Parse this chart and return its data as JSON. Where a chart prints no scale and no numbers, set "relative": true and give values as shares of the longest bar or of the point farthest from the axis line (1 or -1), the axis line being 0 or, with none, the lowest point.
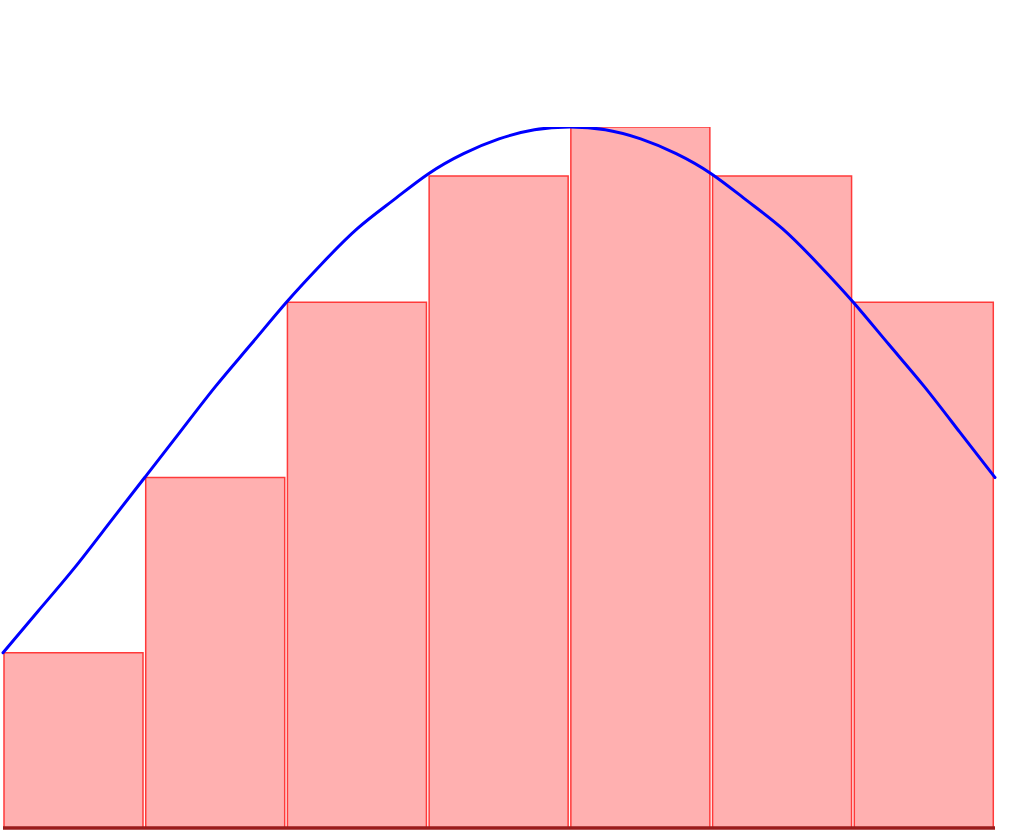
{
  "chart_data": [
    {
      "type": "bar",
      "relative": true,
      "categories": [
        null,
        null,
        null,
        null,
        null,
        null,
        null
      ],
      "color": "#ffb0b0",
      "values": [
        0.25,
        0.5,
        0.75,
        0.93,
        1,
        0.93,
        0.75
      ]
    },
    {
      "type": "line",
      "relative": true,
      "categories": [
        null,
        null,
        null,
        null,
        null,
        null,
        null,
        null,
        null,
        null,
        null,
        null,
        null,
        null,
        null,
        null,
        null,
        null,
        null,
        null,
        null,
        null,
        null,
        null,
        null,
        null,
        null,
        null,
        null
      ],
      "color": "#0000ff",
      "values": [
        0.25,
        0.31,
        0.37,
        0.435,
        0.5,
        0.565,
        0.63,
        0.69,
        0.75,
        0.805,
        0.855,
        0.895,
        0.933,
        0.962,
        0.983,
        0.996,
        1,
        0.996,
        0.983,
        0.962,
        0.933,
        0.895,
        0.855,
        0.805,
        0.75,
        0.69,
        0.63,
        0.565,
        0.5
      ]
    }
  ]
}
